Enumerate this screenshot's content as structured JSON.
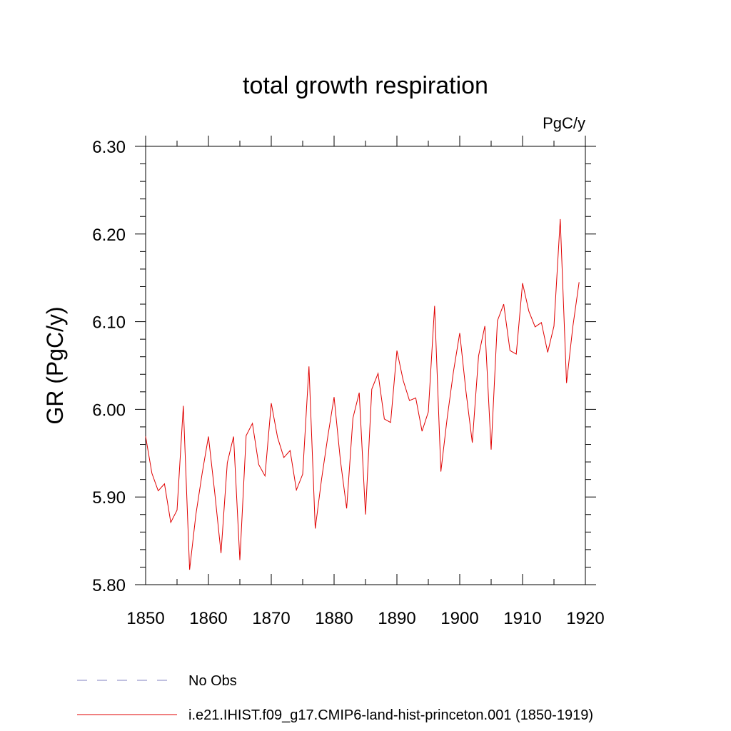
{
  "chart_data": {
    "type": "line",
    "title": "total growth respiration",
    "units_label": "PgC/y",
    "ylabel": "GR  (PgC/y)",
    "xlabel": "",
    "xlim": [
      1850,
      1920
    ],
    "ylim": [
      5.8,
      6.3
    ],
    "x_ticks": [
      1850,
      1860,
      1870,
      1880,
      1890,
      1900,
      1910,
      1920
    ],
    "y_ticks": [
      "5.80",
      "5.90",
      "6.00",
      "6.10",
      "6.20",
      "6.30"
    ],
    "y_tick_values": [
      5.8,
      5.9,
      6.0,
      6.1,
      6.2,
      6.3
    ],
    "grid": false,
    "legend_position": "bottom-left",
    "series": [
      {
        "name": "No Obs",
        "color": "#8080c0",
        "style": "dashed",
        "x": [],
        "values": []
      },
      {
        "name": "i.e21.IHIST.f09_g17.CMIP6-land-hist-princeton.001 (1850-1919)",
        "color": "#e00000",
        "style": "solid",
        "x": [
          1850,
          1851,
          1852,
          1853,
          1854,
          1855,
          1856,
          1857,
          1858,
          1859,
          1860,
          1861,
          1862,
          1863,
          1864,
          1865,
          1866,
          1867,
          1868,
          1869,
          1870,
          1871,
          1872,
          1873,
          1874,
          1875,
          1876,
          1877,
          1878,
          1879,
          1880,
          1881,
          1882,
          1883,
          1884,
          1885,
          1886,
          1887,
          1888,
          1889,
          1890,
          1891,
          1892,
          1893,
          1894,
          1895,
          1896,
          1897,
          1898,
          1899,
          1900,
          1901,
          1902,
          1903,
          1904,
          1905,
          1906,
          1907,
          1908,
          1909,
          1910,
          1911,
          1912,
          1913,
          1914,
          1915,
          1916,
          1917,
          1918,
          1919
        ],
        "values": [
          5.969,
          5.927,
          5.907,
          5.915,
          5.871,
          5.885,
          6.004,
          5.817,
          5.88,
          5.927,
          5.969,
          5.905,
          5.836,
          5.939,
          5.969,
          5.828,
          5.97,
          5.984,
          5.937,
          5.924,
          6.007,
          5.968,
          5.945,
          5.953,
          5.908,
          5.926,
          6.049,
          5.864,
          5.92,
          5.969,
          6.014,
          5.942,
          5.887,
          5.99,
          6.019,
          5.88,
          6.023,
          6.041,
          5.989,
          5.985,
          6.067,
          6.033,
          6.01,
          6.013,
          5.975,
          5.997,
          6.118,
          5.929,
          5.99,
          6.043,
          6.087,
          6.02,
          5.962,
          6.061,
          6.095,
          5.954,
          6.101,
          6.12,
          6.067,
          6.063,
          6.144,
          6.112,
          6.094,
          6.099,
          6.065,
          6.095,
          6.217,
          6.03,
          6.094,
          6.145
        ]
      }
    ]
  }
}
